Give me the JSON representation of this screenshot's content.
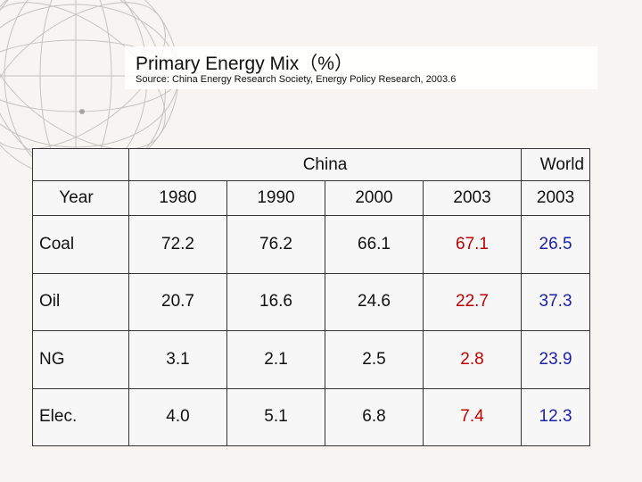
{
  "title": "Primary Energy Mix（%）",
  "source": "Source: China Energy Research Society, Energy Policy Research, 2003.6",
  "colors": {
    "highlight_china_2003": "#c00000",
    "world": "#1c22a8"
  },
  "table": {
    "group_headers": {
      "china": "China",
      "world": "World"
    },
    "year_label": "Year",
    "years": [
      "1980",
      "1990",
      "2000",
      "2003",
      "2003"
    ],
    "rows": [
      {
        "label": "Coal",
        "values": [
          "72.2",
          "76.2",
          "66.1",
          "67.1",
          "26.5"
        ]
      },
      {
        "label": "Oil",
        "values": [
          "20.7",
          "16.6",
          "24.6",
          "22.7",
          "37.3"
        ]
      },
      {
        "label": "NG",
        "values": [
          "3.1",
          "2.1",
          "2.5",
          "2.8",
          "23.9"
        ]
      },
      {
        "label": "Elec.",
        "values": [
          "4.0",
          "5.1",
          "6.8",
          "7.4",
          "12.3"
        ]
      }
    ]
  }
}
